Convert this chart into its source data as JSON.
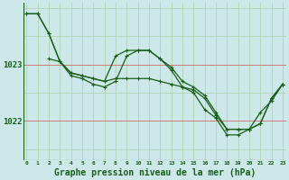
{
  "bg_color": "#cce8e8",
  "line_color": "#1a5e1a",
  "grid_color": "#aacfaa",
  "red_line_color": "#d07070",
  "xlabel": "Graphe pression niveau de la mer (hPa)",
  "xlabel_fontsize": 7,
  "ytick_labels": [
    "1022",
    "1023"
  ],
  "ytick_vals": [
    1022.0,
    1023.0
  ],
  "ylim": [
    1021.3,
    1024.1
  ],
  "xlim": [
    0,
    23
  ],
  "xtick_labels": [
    "0",
    "1",
    "2",
    "3",
    "4",
    "5",
    "6",
    "7",
    "8",
    "9",
    "10",
    "11",
    "12",
    "13",
    "14",
    "15",
    "16",
    "17",
    "18",
    "19",
    "20",
    "21",
    "22",
    "23"
  ],
  "series1_x": [
    0,
    1,
    2,
    3,
    4,
    5,
    6,
    7,
    8,
    9,
    10,
    11,
    12,
    13,
    14,
    15,
    16,
    17,
    18,
    19,
    20,
    21,
    22,
    23
  ],
  "series1_y": [
    1023.9,
    1023.9,
    1023.55,
    1023.05,
    1022.85,
    1022.8,
    1022.75,
    1022.7,
    1023.15,
    1023.25,
    1023.25,
    1023.25,
    1023.1,
    1022.95,
    1022.7,
    1022.6,
    1022.45,
    1022.15,
    1021.85,
    1021.85,
    1021.85,
    1021.95,
    1022.4,
    1022.65
  ],
  "series2_x": [
    0,
    1,
    2,
    3,
    4,
    5,
    6,
    7,
    8,
    9,
    10,
    11,
    12,
    13,
    14,
    15,
    16,
    17,
    18,
    19,
    20,
    21,
    22,
    23
  ],
  "series2_y": [
    1023.9,
    1023.9,
    1023.55,
    1023.05,
    1022.85,
    1022.8,
    1022.75,
    1022.7,
    1022.75,
    1022.75,
    1022.75,
    1022.75,
    1022.7,
    1022.65,
    1022.6,
    1022.55,
    1022.4,
    1022.1,
    1021.85,
    1021.85,
    1021.85,
    1021.95,
    1022.4,
    1022.65
  ],
  "series3_x": [
    2,
    3,
    4,
    5,
    6,
    7,
    8,
    9,
    10,
    11,
    12,
    13,
    14,
    15,
    16,
    17,
    18,
    19,
    20,
    21,
    22,
    23
  ],
  "series3_y": [
    1023.1,
    1023.05,
    1022.8,
    1022.75,
    1022.65,
    1022.6,
    1022.7,
    1023.15,
    1023.25,
    1023.25,
    1023.1,
    1022.9,
    1022.6,
    1022.5,
    1022.2,
    1022.05,
    1021.75,
    1021.75,
    1021.85,
    1022.15,
    1022.35,
    1022.65
  ],
  "marker": "+",
  "markersize": 3,
  "linewidth": 0.9
}
